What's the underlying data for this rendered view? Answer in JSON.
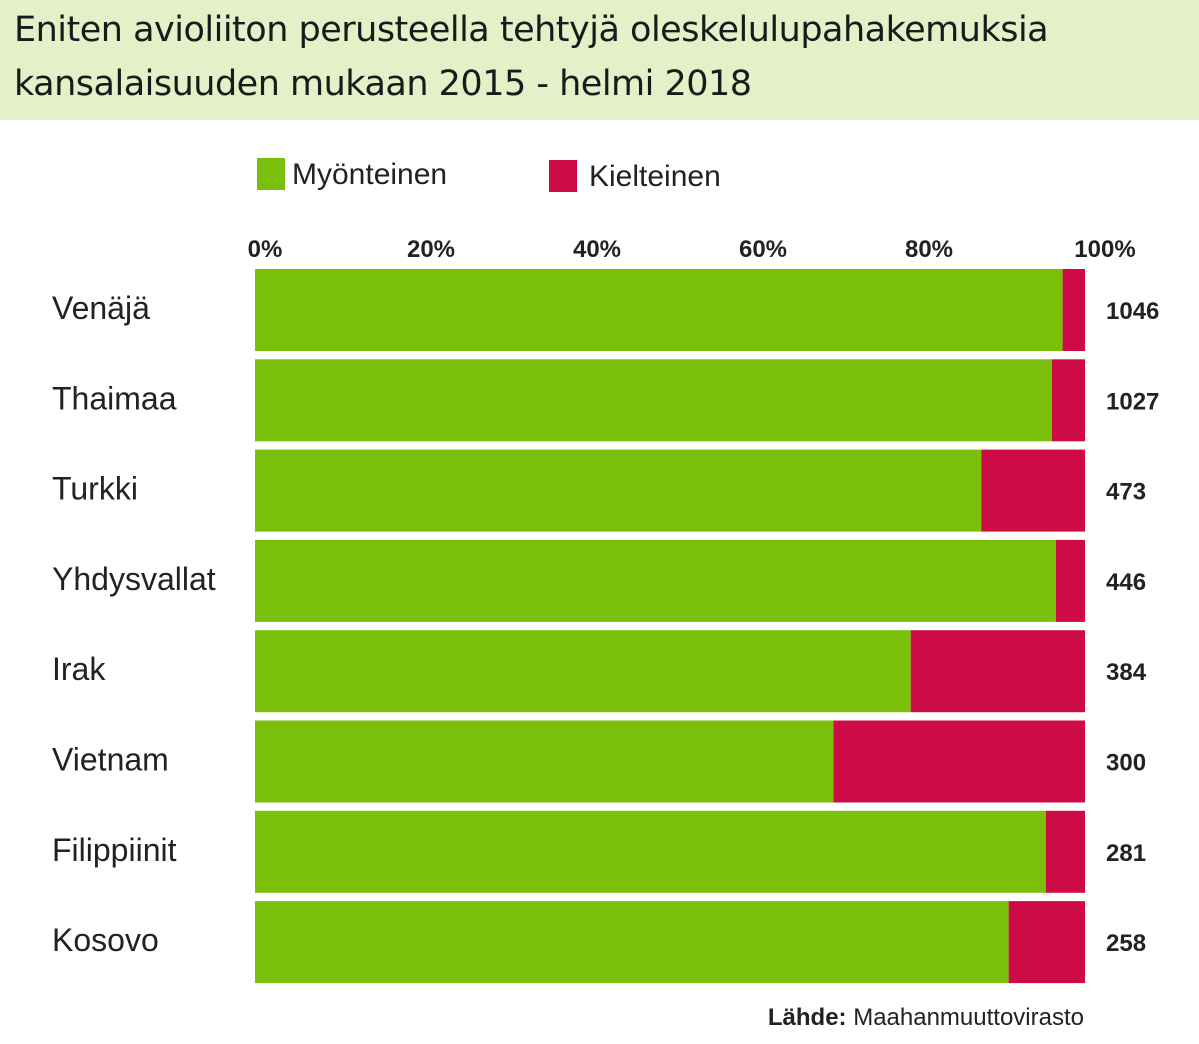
{
  "header": {
    "title_line1": "Eniten avioliiton perusteella tehtyjä oleskelulupahakemuksia",
    "title_line2": "kansalaisuuden mukaan 2015 - helmi 2018"
  },
  "legend": {
    "items": [
      {
        "label": "Myönteinen",
        "color": "#7ac00a"
      },
      {
        "label": "Kielteinen",
        "color": "#cc0b47"
      }
    ]
  },
  "source": {
    "prefix": "Lähde:",
    "name": "Maahanmuuttovirasto"
  },
  "chart_data": {
    "type": "bar",
    "orientation": "horizontal",
    "stacked": "100%",
    "categories": [
      "Venäjä",
      "Thaimaa",
      "Turkki",
      "Yhdysvallat",
      "Irak",
      "Vietnam",
      "Filippiinit",
      "Kosovo"
    ],
    "series": [
      {
        "name": "Myönteinen",
        "color": "#7ac00a",
        "values": [
          97.3,
          96.0,
          87.5,
          96.5,
          79.0,
          69.7,
          95.3,
          90.8
        ]
      },
      {
        "name": "Kielteinen",
        "color": "#cc0b47",
        "values": [
          2.7,
          4.0,
          12.5,
          3.5,
          21.0,
          30.3,
          4.7,
          9.2
        ]
      }
    ],
    "totals": [
      "1046",
      "1027",
      "473",
      "446",
      "384",
      "300",
      "281",
      "258"
    ],
    "x_ticks": [
      "0%",
      "20%",
      "40%",
      "60%",
      "80%",
      "100%"
    ],
    "xlim": [
      0,
      100
    ],
    "grid": false,
    "legend_position": "top"
  }
}
